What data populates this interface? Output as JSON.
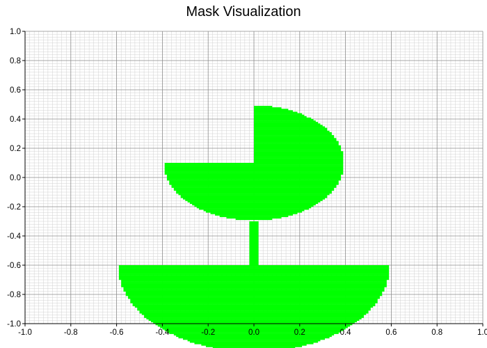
{
  "chart_data": {
    "type": "heatmap",
    "title": "Mask Visualization",
    "xlabel": "",
    "ylabel": "",
    "xlim": [
      -1.0,
      1.0
    ],
    "ylim": [
      -1.0,
      1.0
    ],
    "grid": true,
    "x_ticks": [
      "-1.0",
      "-0.8",
      "-0.6",
      "-0.4",
      "-0.2",
      "0.0",
      "0.2",
      "0.4",
      "0.6",
      "0.8",
      "1.0"
    ],
    "y_ticks": [
      "1.0",
      "0.8",
      "0.6",
      "0.4",
      "0.2",
      "0.0",
      "-0.2",
      "-0.4",
      "-0.6",
      "-0.8",
      "-1.0"
    ],
    "mask_color": "#00ff00",
    "grid_color": "#d0d0d0",
    "major_grid_color": "#8c8c8c",
    "mask_regions": [
      {
        "name": "quarter-circle",
        "shape": "sector",
        "center": [
          0.0,
          0.1
        ],
        "radius": 0.4,
        "angle_range_deg": [
          0,
          90
        ]
      },
      {
        "name": "lower-half-circle",
        "shape": "half-disc",
        "center": [
          0.0,
          0.1
        ],
        "radius": 0.4,
        "side": "below"
      },
      {
        "name": "stem",
        "shape": "rect",
        "x_range": [
          -0.02,
          0.02
        ],
        "y_range": [
          -0.6,
          -0.3
        ]
      },
      {
        "name": "base-bowl",
        "shape": "half-disc",
        "center": [
          0.0,
          -0.6
        ],
        "radius": 0.6,
        "side": "below"
      }
    ]
  }
}
